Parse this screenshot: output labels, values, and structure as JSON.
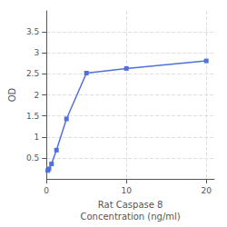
{
  "chart_data": {
    "type": "line",
    "xlabel": "Rat Caspase 8\nConcentration (ng/ml)",
    "ylabel": "OD",
    "x": [
      0.156,
      0.313,
      0.625,
      1.25,
      2.5,
      5,
      10,
      20
    ],
    "values": [
      0.201,
      0.241,
      0.358,
      0.687,
      1.43,
      2.52,
      2.63,
      2.81
    ],
    "xlim": [
      0,
      21
    ],
    "ylim": [
      0,
      4.0
    ],
    "xticks": [
      0,
      10,
      20
    ],
    "yticks": [
      0.5,
      1.0,
      1.5,
      2.0,
      2.5,
      3.0,
      3.5
    ],
    "marker": "square",
    "grid": true
  }
}
